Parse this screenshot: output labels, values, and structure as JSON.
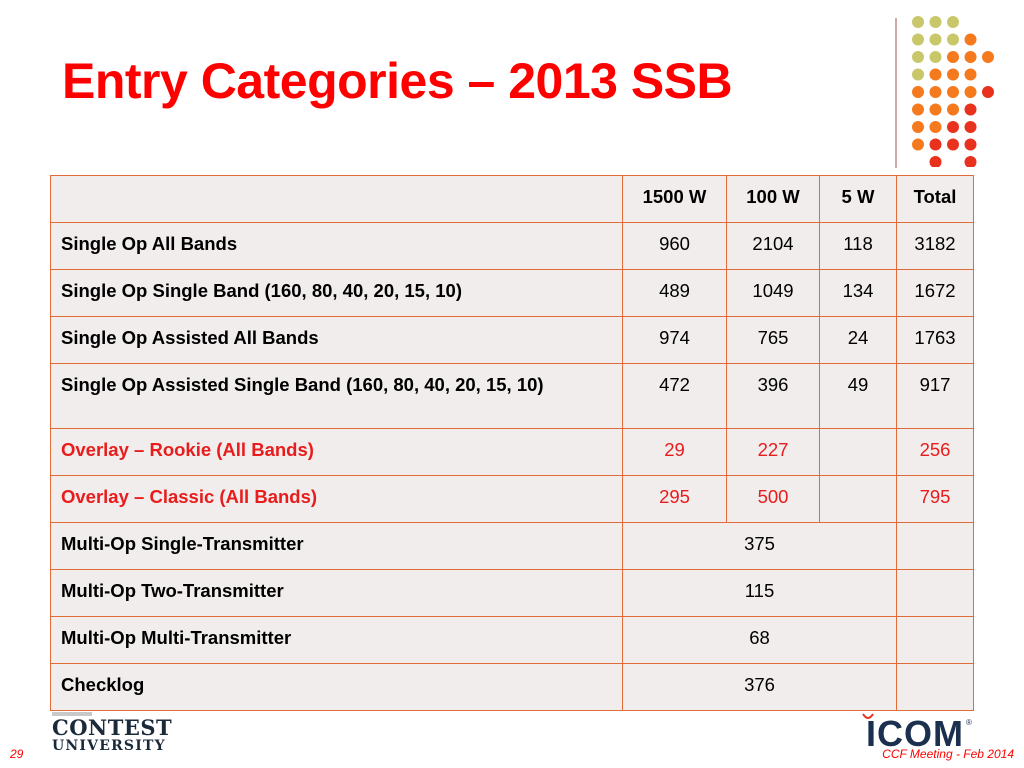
{
  "title": "Entry Categories – 2013 SSB",
  "colors": {
    "accent": "#ff0000",
    "border": "#e26b3a",
    "table_bg": "#f2eded"
  },
  "table": {
    "headers": [
      "",
      "1500 W",
      "100 W",
      "5 W",
      "Total"
    ],
    "rows": [
      {
        "label": "Single Op All Bands",
        "cells": [
          "960",
          "2104",
          "118",
          "3182"
        ]
      },
      {
        "label": "Single Op Single Band (160, 80, 40, 20, 15, 10)",
        "cells": [
          "489",
          "1049",
          "134",
          "1672"
        ]
      },
      {
        "label": "Single Op Assisted All Bands",
        "cells": [
          "974",
          "765",
          "24",
          "1763"
        ]
      },
      {
        "label": "Single Op Assisted Single Band (160, 80, 40, 20, 15, 10)",
        "cells": [
          "472",
          "396",
          "49",
          "917"
        ]
      },
      {
        "label": "Overlay – Rookie (All Bands)",
        "cells": [
          "29",
          "227",
          "",
          "256"
        ]
      },
      {
        "label": "Overlay – Classic (All Bands)",
        "cells": [
          "295",
          "500",
          "",
          "795"
        ]
      },
      {
        "label": "Multi-Op Single-Transmitter",
        "merged": "375"
      },
      {
        "label": "Multi-Op Two-Transmitter",
        "merged": "115"
      },
      {
        "label": "Multi-Op Multi-Transmitter",
        "merged": "68"
      },
      {
        "label": "Checklog",
        "merged": "376"
      }
    ]
  },
  "logo_left": {
    "line1": "CONTEST",
    "line2": "UNIVERSITY"
  },
  "logo_right": {
    "text": "ICOM",
    "reg": "®"
  },
  "page_number": "29",
  "footer": "CCF Meeting - Feb 2014",
  "decoration": {
    "name": "dot-grid-ornament",
    "colors": [
      "#c8c86a",
      "#f57a1e",
      "#e8321e"
    ]
  }
}
